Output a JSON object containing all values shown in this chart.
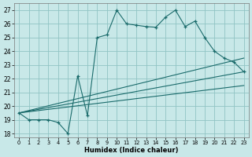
{
  "xlabel": "Humidex (Indice chaleur)",
  "background_color": "#c8e8e8",
  "grid_color": "#90c4c4",
  "line_color": "#1a6b6b",
  "xlim": [
    -0.5,
    23.5
  ],
  "ylim": [
    17.7,
    27.5
  ],
  "xtick_positions": [
    0,
    1,
    2,
    3,
    4,
    5,
    6,
    7,
    8,
    9,
    10,
    11,
    12,
    13,
    14,
    15,
    16,
    17,
    18,
    19,
    20,
    21,
    22,
    23
  ],
  "xtick_labels": [
    "0",
    "1",
    "2",
    "3",
    "4",
    "5",
    "6",
    "7",
    "8",
    "9",
    "10",
    "11",
    "12",
    "13",
    "14",
    "15",
    "16",
    "17",
    "18",
    "19",
    "20",
    "21",
    "22",
    "23"
  ],
  "ytick_positions": [
    18,
    19,
    20,
    21,
    22,
    23,
    24,
    25,
    26,
    27
  ],
  "ytick_labels": [
    "18",
    "19",
    "20",
    "21",
    "22",
    "23",
    "24",
    "25",
    "26",
    "27"
  ],
  "main_x": [
    0,
    1,
    2,
    3,
    4,
    5,
    6,
    7,
    8,
    9,
    10,
    11,
    12,
    13,
    14,
    15,
    16,
    17,
    18,
    19,
    20,
    21,
    22,
    23
  ],
  "main_y": [
    19.5,
    19.0,
    19.0,
    19.0,
    18.8,
    18.0,
    22.2,
    19.3,
    25.0,
    25.2,
    27.0,
    26.0,
    25.9,
    25.8,
    25.75,
    26.5,
    27.0,
    25.8,
    26.2,
    25.0,
    24.0,
    23.5,
    23.2,
    22.5
  ],
  "line1_x": [
    0,
    23
  ],
  "line1_y": [
    19.5,
    23.5
  ],
  "line2_x": [
    0,
    23
  ],
  "line2_y": [
    19.5,
    22.5
  ],
  "line3_x": [
    0,
    23
  ],
  "line3_y": [
    19.5,
    21.5
  ]
}
